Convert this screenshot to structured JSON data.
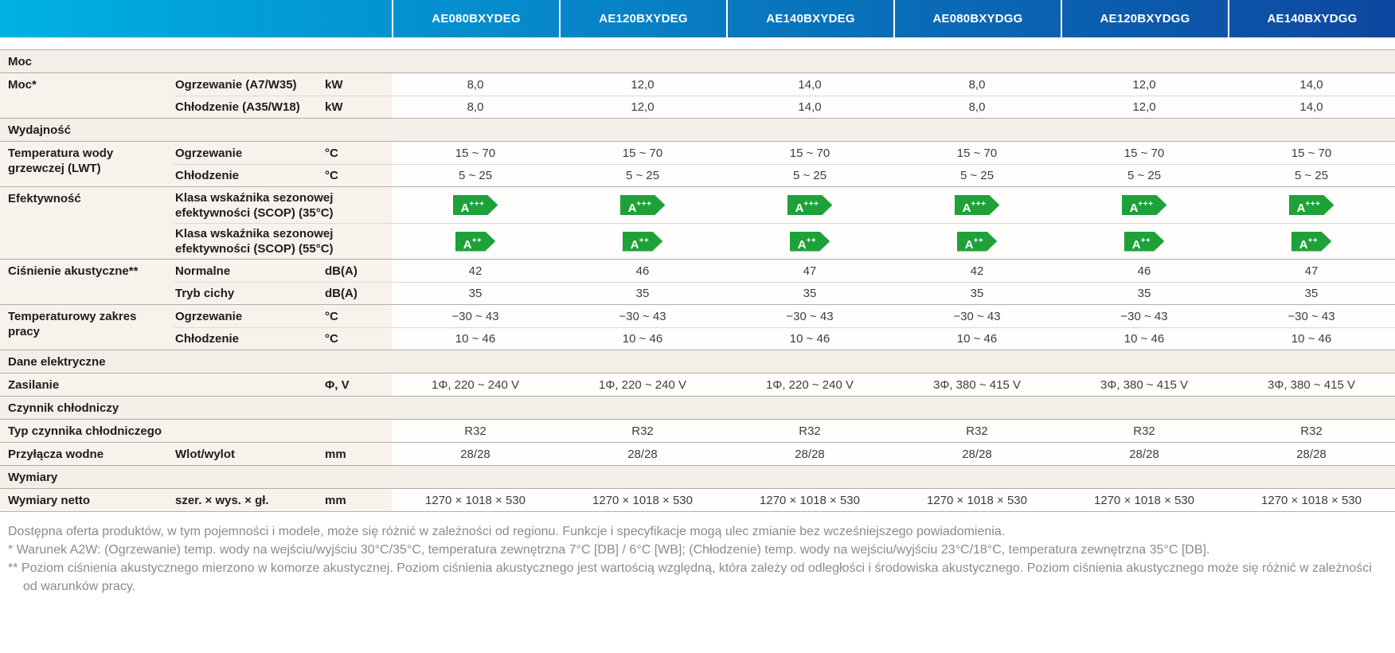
{
  "colors": {
    "header_gradient_start": "#00b1e6",
    "header_gradient_end": "#0e479f",
    "energy_badge_green": "#1fa139",
    "section_bg": "#f3eee7",
    "label_bg": "#f7f2ec"
  },
  "header": {
    "models": [
      "AE080BXYDEG",
      "AE120BXYDEG",
      "AE140BXYDEG",
      "AE080BXYDGG",
      "AE120BXYDGG",
      "AE140BXYDGG"
    ]
  },
  "blocks": [
    {
      "kind": "section",
      "label": "Moc"
    },
    {
      "kind": "group",
      "label": "Moc*",
      "lines": [
        {
          "sub": "Ogrzewanie (A7/W35)",
          "unit": "kW",
          "values": [
            "8,0",
            "12,0",
            "14,0",
            "8,0",
            "12,0",
            "14,0"
          ]
        },
        {
          "sub": "Chłodzenie (A35/W18)",
          "unit": "kW",
          "values": [
            "8,0",
            "12,0",
            "14,0",
            "8,0",
            "12,0",
            "14,0"
          ]
        }
      ]
    },
    {
      "kind": "section",
      "label": "Wydajność"
    },
    {
      "kind": "group",
      "label": "Temperatura wody grzewczej (LWT)",
      "lines": [
        {
          "sub": "Ogrzewanie",
          "unit": "°C",
          "values": [
            "15 ~ 70",
            "15 ~ 70",
            "15 ~ 70",
            "15 ~ 70",
            "15 ~ 70",
            "15 ~ 70"
          ]
        },
        {
          "sub": "Chłodzenie",
          "unit": "°C",
          "values": [
            "5 ~ 25",
            "5 ~ 25",
            "5 ~ 25",
            "5 ~ 25",
            "5 ~ 25",
            "5 ~ 25"
          ]
        }
      ]
    },
    {
      "kind": "group",
      "label": "Efektywność",
      "lines": [
        {
          "sub": "Klasa wskaźnika sezonowej efektywności (SCOP) (35°C)",
          "unit": "",
          "values": [
            "A+++",
            "A+++",
            "A+++",
            "A+++",
            "A+++",
            "A+++"
          ]
        },
        {
          "sub": "Klasa wskaźnika sezonowej efektywności (SCOP) (55°C)",
          "unit": "",
          "values": [
            "A++",
            "A++",
            "A++",
            "A++",
            "A++",
            "A++"
          ]
        }
      ]
    },
    {
      "kind": "group",
      "label": "Ciśnienie akustyczne**",
      "lines": [
        {
          "sub": "Normalne",
          "unit": "dB(A)",
          "values": [
            "42",
            "46",
            "47",
            "42",
            "46",
            "47"
          ]
        },
        {
          "sub": "Tryb cichy",
          "unit": "dB(A)",
          "values": [
            "35",
            "35",
            "35",
            "35",
            "35",
            "35"
          ]
        }
      ]
    },
    {
      "kind": "group",
      "label": "Temperaturowy zakres pracy",
      "lines": [
        {
          "sub": "Ogrzewanie",
          "unit": "°C",
          "values": [
            "−30 ~ 43",
            "−30 ~ 43",
            "−30 ~ 43",
            "−30 ~ 43",
            "−30 ~ 43",
            "−30 ~ 43"
          ]
        },
        {
          "sub": "Chłodzenie",
          "unit": "°C",
          "values": [
            "10 ~ 46",
            "10 ~ 46",
            "10 ~ 46",
            "10 ~ 46",
            "10 ~ 46",
            "10 ~ 46"
          ]
        }
      ]
    },
    {
      "kind": "section",
      "label": "Dane elektryczne"
    },
    {
      "kind": "group",
      "label": "Zasilanie",
      "lines": [
        {
          "sub": "",
          "unit": "Φ, V",
          "values": [
            "1Φ, 220 ~ 240 V",
            "1Φ, 220 ~ 240 V",
            "1Φ, 220 ~ 240 V",
            "3Φ, 380 ~ 415 V",
            "3Φ, 380 ~ 415 V",
            "3Φ, 380 ~ 415 V"
          ]
        }
      ]
    },
    {
      "kind": "section",
      "label": "Czynnik chłodniczy"
    },
    {
      "kind": "group",
      "label": "Typ czynnika chłodniczego",
      "lines": [
        {
          "sub": "",
          "unit": "",
          "values": [
            "R32",
            "R32",
            "R32",
            "R32",
            "R32",
            "R32"
          ]
        }
      ]
    },
    {
      "kind": "group",
      "label": "Przyłącza wodne",
      "lines": [
        {
          "sub": "Wlot/wylot",
          "unit": "mm",
          "values": [
            "28/28",
            "28/28",
            "28/28",
            "28/28",
            "28/28",
            "28/28"
          ]
        }
      ]
    },
    {
      "kind": "section",
      "label": "Wymiary"
    },
    {
      "kind": "group",
      "label": "Wymiary netto",
      "lines": [
        {
          "sub": "szer. × wys. × gł.",
          "unit": "mm",
          "values": [
            "1270 × 1018 × 530",
            "1270 × 1018 × 530",
            "1270 × 1018 × 530",
            "1270 × 1018 × 530",
            "1270 × 1018 × 530",
            "1270 × 1018 × 530"
          ]
        }
      ]
    }
  ],
  "footnotes": [
    "Dostępna oferta produktów, w tym pojemności i modele, może się różnić w zależności od regionu. Funkcje i specyfikacje mogą ulec zmianie bez wcześniejszego powiadomienia.",
    "* Warunek A2W: (Ogrzewanie) temp. wody na wejściu/wyjściu 30°C/35°C, temperatura zewnętrzna 7°C [DB] / 6°C [WB]; (Chłodzenie) temp. wody na wejściu/wyjściu 23°C/18°C, temperatura zewnętrzna 35°C [DB].",
    "** Poziom ciśnienia akustycznego mierzono w komorze akustycznej. Poziom ciśnienia akustycznego jest wartością względną, która zależy od odległości i środowiska akustycznego. Poziom ciśnienia akustycznego może się różnić w zależności od warunków pracy."
  ]
}
